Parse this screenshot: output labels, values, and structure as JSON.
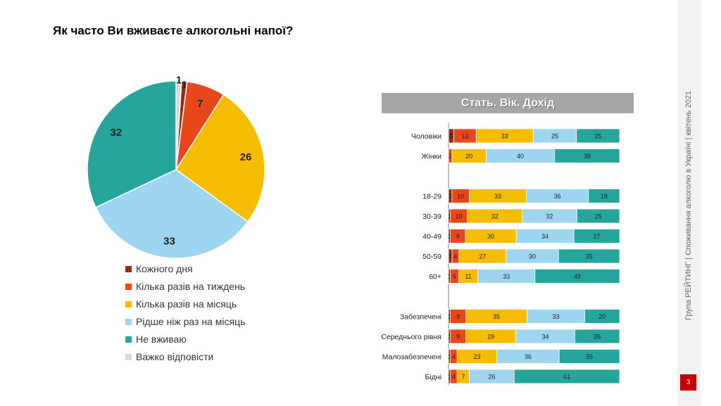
{
  "title": "Як часто Ви вживаєте алкогольні напої?",
  "sidebar_text": "Група РЕЙТИНГ | Споживання алкоголю в Україні | квітень 2021",
  "page_number": "3",
  "bar_header": "Стать. Вік. Дохід",
  "colors": {
    "daily": "#9b2a12",
    "weekly": "#e8461b",
    "monthly": "#f6bd00",
    "rarely": "#9dd4f0",
    "never": "#26a69a",
    "hard": "#d9d9d9"
  },
  "chart_data": [
    {
      "type": "pie",
      "title": "Як часто Ви вживаєте алкогольні напої?",
      "legend_position": "bottom",
      "slices": [
        {
          "key": "hard",
          "label": "Важко відповісти",
          "value": 1
        },
        {
          "key": "daily",
          "label": "Кожного дня",
          "value": 1
        },
        {
          "key": "weekly",
          "label": "Кілька разів на тиждень",
          "value": 7
        },
        {
          "key": "monthly",
          "label": "Кілька разів на місяць",
          "value": 26
        },
        {
          "key": "rarely",
          "label": "Рідше ніж раз на місяць",
          "value": 33
        },
        {
          "key": "never",
          "label": "Не вживаю",
          "value": 32
        }
      ],
      "legend": [
        {
          "key": "daily",
          "label": "Кожного дня"
        },
        {
          "key": "weekly",
          "label": "Кілька разів на тиждень"
        },
        {
          "key": "monthly",
          "label": "Кілька разів на місяць"
        },
        {
          "key": "rarely",
          "label": "Рідше ніж раз на місяць"
        },
        {
          "key": "never",
          "label": "Не вживаю"
        },
        {
          "key": "hard",
          "label": "Важко відповісти"
        }
      ]
    },
    {
      "type": "bar",
      "orientation": "horizontal-stacked",
      "title": "Стать. Вік. Дохід",
      "series_keys": [
        "daily",
        "weekly",
        "monthly",
        "rarely",
        "never"
      ],
      "groups": [
        [
          {
            "label": "Чоловіки",
            "values": [
              3,
              13,
              33,
              25,
              25
            ]
          },
          {
            "label": "Жінки",
            "values": [
              0,
              2,
              20,
              40,
              38
            ]
          }
        ],
        [
          {
            "label": "18-29",
            "values": [
              2,
              10,
              33,
              36,
              18
            ]
          },
          {
            "label": "30-39",
            "values": [
              1,
              10,
              32,
              32,
              25
            ]
          },
          {
            "label": "40-49",
            "values": [
              1,
              9,
              30,
              34,
              27
            ]
          },
          {
            "label": "50-59",
            "values": [
              2,
              4,
              27,
              30,
              35
            ]
          },
          {
            "label": "60+",
            "values": [
              1,
              5,
              11,
              33,
              49
            ]
          }
        ],
        [
          {
            "label": "Забезпечені",
            "values": [
              1,
              9,
              35,
              33,
              20
            ]
          },
          {
            "label": "Середнього рівня",
            "values": [
              1,
              9,
              29,
              34,
              26
            ]
          },
          {
            "label": "Малозабезпечені",
            "values": [
              1,
              4,
              23,
              36,
              35
            ]
          },
          {
            "label": "Бідні",
            "values": [
              1,
              4,
              7,
              26,
              61
            ]
          }
        ]
      ]
    }
  ]
}
